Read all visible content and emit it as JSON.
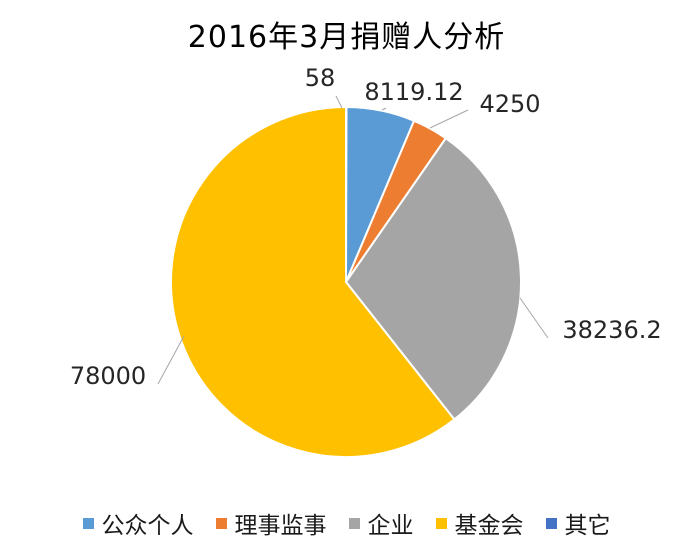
{
  "chart_data": {
    "type": "pie",
    "title": "2016年3月捐赠人分析",
    "categories": [
      "公众个人",
      "理事监事",
      "企业",
      "基金会",
      "其它"
    ],
    "values": [
      8119.12,
      4250,
      38236.2,
      78000,
      58
    ],
    "labels": [
      "8119.12",
      "4250",
      "38236.2",
      "78000",
      "58"
    ],
    "colors": [
      "#5B9BD5",
      "#ED7D31",
      "#A5A5A5",
      "#FFC000",
      "#4472C4"
    ],
    "legend_position": "bottom"
  }
}
